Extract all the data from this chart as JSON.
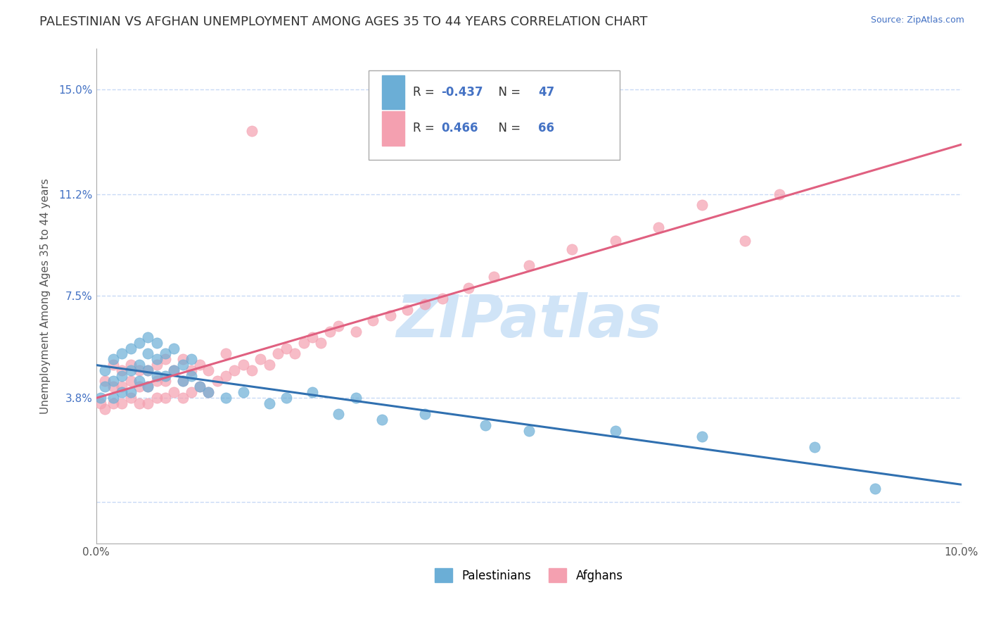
{
  "title": "PALESTINIAN VS AFGHAN UNEMPLOYMENT AMONG AGES 35 TO 44 YEARS CORRELATION CHART",
  "source": "Source: ZipAtlas.com",
  "ylabel": "Unemployment Among Ages 35 to 44 years",
  "xlim": [
    0.0,
    0.1
  ],
  "ylim": [
    -0.015,
    0.165
  ],
  "yticks": [
    0.0,
    0.038,
    0.075,
    0.112,
    0.15
  ],
  "ytick_labels": [
    "",
    "3.8%",
    "7.5%",
    "11.2%",
    "15.0%"
  ],
  "xticks": [
    0.0,
    0.02,
    0.04,
    0.06,
    0.08,
    0.1
  ],
  "xtick_labels": [
    "0.0%",
    "",
    "",
    "",
    "",
    "10.0%"
  ],
  "palestinian_color": "#6baed6",
  "afghan_color": "#f4a0b0",
  "palestinian_line_color": "#3070b0",
  "afghan_line_color": "#e06080",
  "watermark_text": "ZIPatlas",
  "legend_R_palestinian": "-0.437",
  "legend_N_palestinian": "47",
  "legend_R_afghan": "0.466",
  "legend_N_afghan": "66",
  "legend_label_palestinian": "Palestinians",
  "legend_label_afghan": "Afghans",
  "background_color": "#ffffff",
  "grid_color": "#c8daf5",
  "title_fontsize": 13,
  "axis_label_fontsize": 11,
  "tick_fontsize": 11,
  "watermark_color": "#d0e4f7",
  "watermark_fontsize": 60,
  "palestinian_x": [
    0.0005,
    0.001,
    0.001,
    0.002,
    0.002,
    0.002,
    0.003,
    0.003,
    0.003,
    0.004,
    0.004,
    0.004,
    0.005,
    0.005,
    0.005,
    0.006,
    0.006,
    0.006,
    0.006,
    0.007,
    0.007,
    0.007,
    0.008,
    0.008,
    0.009,
    0.009,
    0.01,
    0.01,
    0.011,
    0.011,
    0.012,
    0.013,
    0.015,
    0.017,
    0.02,
    0.022,
    0.025,
    0.028,
    0.03,
    0.033,
    0.038,
    0.045,
    0.05,
    0.06,
    0.07,
    0.083,
    0.09
  ],
  "palestinian_y": [
    0.038,
    0.042,
    0.048,
    0.038,
    0.044,
    0.052,
    0.04,
    0.046,
    0.054,
    0.04,
    0.048,
    0.056,
    0.044,
    0.05,
    0.058,
    0.042,
    0.048,
    0.054,
    0.06,
    0.046,
    0.052,
    0.058,
    0.046,
    0.054,
    0.048,
    0.056,
    0.044,
    0.05,
    0.046,
    0.052,
    0.042,
    0.04,
    0.038,
    0.04,
    0.036,
    0.038,
    0.04,
    0.032,
    0.038,
    0.03,
    0.032,
    0.028,
    0.026,
    0.026,
    0.024,
    0.02,
    0.005
  ],
  "afghan_x": [
    0.0005,
    0.001,
    0.001,
    0.002,
    0.002,
    0.002,
    0.003,
    0.003,
    0.003,
    0.004,
    0.004,
    0.004,
    0.005,
    0.005,
    0.005,
    0.006,
    0.006,
    0.006,
    0.007,
    0.007,
    0.007,
    0.008,
    0.008,
    0.008,
    0.009,
    0.009,
    0.01,
    0.01,
    0.01,
    0.011,
    0.011,
    0.012,
    0.012,
    0.013,
    0.013,
    0.014,
    0.015,
    0.015,
    0.016,
    0.017,
    0.018,
    0.019,
    0.02,
    0.021,
    0.022,
    0.023,
    0.024,
    0.025,
    0.026,
    0.027,
    0.028,
    0.03,
    0.032,
    0.034,
    0.036,
    0.038,
    0.04,
    0.043,
    0.046,
    0.05,
    0.055,
    0.06,
    0.065,
    0.07,
    0.075,
    0.079
  ],
  "afghan_y": [
    0.036,
    0.034,
    0.044,
    0.036,
    0.042,
    0.05,
    0.036,
    0.042,
    0.048,
    0.038,
    0.044,
    0.05,
    0.036,
    0.042,
    0.048,
    0.036,
    0.042,
    0.048,
    0.038,
    0.044,
    0.05,
    0.038,
    0.044,
    0.052,
    0.04,
    0.048,
    0.038,
    0.044,
    0.052,
    0.04,
    0.048,
    0.042,
    0.05,
    0.04,
    0.048,
    0.044,
    0.046,
    0.054,
    0.048,
    0.05,
    0.048,
    0.052,
    0.05,
    0.054,
    0.056,
    0.054,
    0.058,
    0.06,
    0.058,
    0.062,
    0.064,
    0.062,
    0.066,
    0.068,
    0.07,
    0.072,
    0.074,
    0.078,
    0.082,
    0.086,
    0.092,
    0.095,
    0.1,
    0.108,
    0.095,
    0.112
  ],
  "afghan_outlier_x": [
    0.018
  ],
  "afghan_outlier_y": [
    0.135
  ]
}
